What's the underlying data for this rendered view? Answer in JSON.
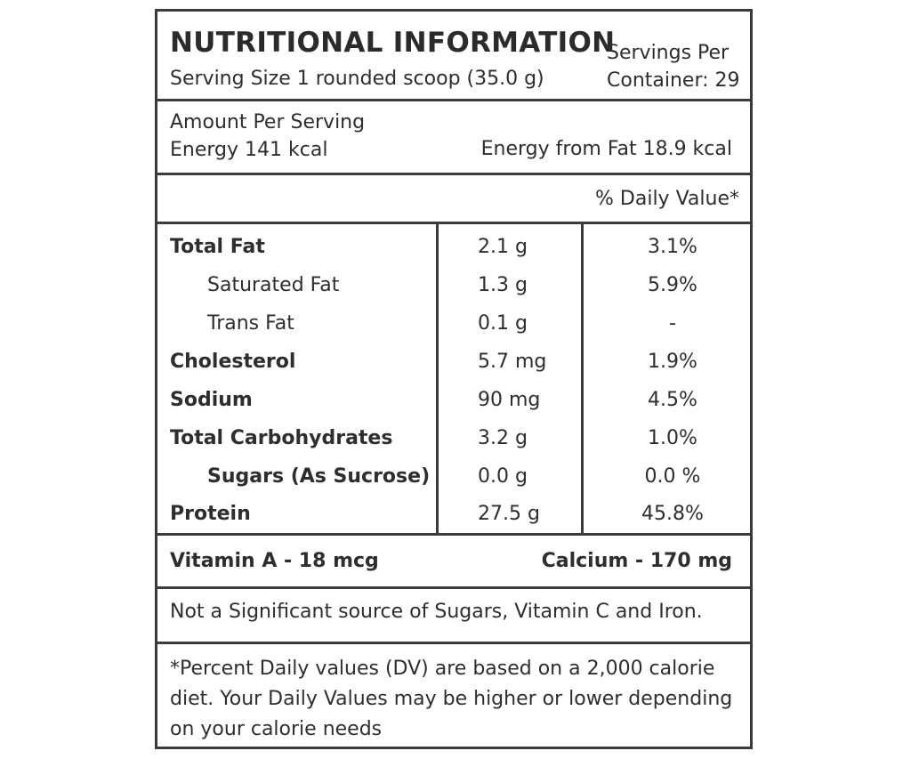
{
  "header": {
    "title": "NUTRITIONAL INFORMATION",
    "serving_size": "Serving Size 1 rounded scoop (35.0 g)",
    "servings_per_line1": "Servings Per",
    "servings_per_line2": "Container: 29"
  },
  "energy": {
    "amount_per_serving": "Amount Per Serving",
    "energy": "Energy 141 kcal",
    "energy_from_fat": "Energy from Fat 18.9 kcal"
  },
  "daily_value_header": "% Daily Value*",
  "nutrients": [
    {
      "name": "Total Fat",
      "amount": "2.1 g",
      "dv": "3.1%"
    },
    {
      "name": "Saturated Fat",
      "amount": "1.3 g",
      "dv": "5.9%"
    },
    {
      "name": "Trans Fat",
      "amount": "0.1 g",
      "dv": "-"
    },
    {
      "name": "Cholesterol",
      "amount": "5.7 mg",
      "dv": "1.9%"
    },
    {
      "name": "Sodium",
      "amount": "90 mg",
      "dv": "4.5%"
    },
    {
      "name": "Total Carbohydrates",
      "amount": "3.2 g",
      "dv": "1.0%"
    },
    {
      "name": "Sugars (As Sucrose)",
      "amount": "0.0 g",
      "dv": "0.0 %"
    },
    {
      "name": "Protein",
      "amount": "27.5 g",
      "dv": "45.8%"
    }
  ],
  "vitamins": {
    "vitamin_a": "Vitamin A - 18 mcg",
    "calcium": "Calcium - 170 mg"
  },
  "not_significant": "Not a Significant source of Sugars, Vitamin C and Iron.",
  "footnote": "*Percent Daily values (DV) are based on a 2,000 calorie diet. Your Daily Values may be higher or lower depending on your calorie needs"
}
